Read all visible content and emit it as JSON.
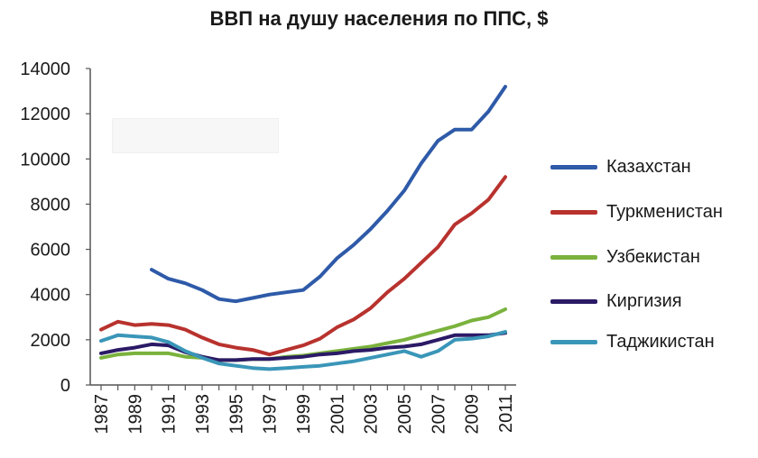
{
  "chart_data": {
    "type": "line",
    "title": "ВВП на душу населения по ППС, $",
    "xlabel": "",
    "ylabel": "",
    "ylim": [
      0,
      14000
    ],
    "xlim": [
      1987,
      2011
    ],
    "y_ticks": [
      0,
      2000,
      4000,
      6000,
      8000,
      10000,
      12000,
      14000
    ],
    "y_tick_labels": [
      "0",
      "2000",
      "4000",
      "6000",
      "8000",
      "10000",
      "12000",
      "14000"
    ],
    "x_ticks": [
      1987,
      1989,
      1991,
      1993,
      1995,
      1997,
      1999,
      2001,
      2003,
      2005,
      2007,
      2009,
      2011
    ],
    "x_tick_labels": [
      "1987",
      "1989",
      "1991",
      "1993",
      "1995",
      "1997",
      "1999",
      "2001",
      "2003",
      "2005",
      "2007",
      "2009",
      "2011"
    ],
    "grid": false,
    "legend_position": "right",
    "series": [
      {
        "name": "Казахстан",
        "color": "#2e5aa8",
        "x": [
          1990,
          1991,
          1992,
          1993,
          1994,
          1995,
          1996,
          1997,
          1998,
          1999,
          2000,
          2001,
          2002,
          2003,
          2004,
          2005,
          2006,
          2007,
          2008,
          2009,
          2010,
          2011
        ],
        "values": [
          5100,
          4700,
          4500,
          4200,
          3800,
          3700,
          3850,
          4000,
          4100,
          4200,
          4800,
          5600,
          6200,
          6900,
          7700,
          8600,
          9800,
          10800,
          11300,
          11300,
          12100,
          13200
        ]
      },
      {
        "name": "Туркменистан",
        "color": "#b8322e",
        "x": [
          1987,
          1988,
          1989,
          1990,
          1991,
          1992,
          1993,
          1994,
          1995,
          1996,
          1997,
          1998,
          1999,
          2000,
          2001,
          2002,
          2003,
          2004,
          2005,
          2006,
          2007,
          2008,
          2009,
          2010,
          2011
        ],
        "values": [
          2450,
          2800,
          2650,
          2700,
          2650,
          2450,
          2100,
          1800,
          1650,
          1550,
          1350,
          1550,
          1750,
          2050,
          2550,
          2900,
          3400,
          4100,
          4700,
          5400,
          6100,
          7100,
          7600,
          8200,
          9200
        ]
      },
      {
        "name": "Узбекистан",
        "color": "#7ab23d",
        "x": [
          1987,
          1988,
          1989,
          1990,
          1991,
          1992,
          1993,
          1994,
          1995,
          1996,
          1997,
          1998,
          1999,
          2000,
          2001,
          2002,
          2003,
          2004,
          2005,
          2006,
          2007,
          2008,
          2009,
          2010,
          2011
        ],
        "values": [
          1200,
          1350,
          1400,
          1400,
          1400,
          1250,
          1200,
          1100,
          1100,
          1150,
          1150,
          1250,
          1300,
          1400,
          1500,
          1600,
          1700,
          1850,
          2000,
          2200,
          2400,
          2600,
          2850,
          3000,
          3350
        ]
      },
      {
        "name": "Киргизия",
        "color": "#2b1a66",
        "x": [
          1987,
          1988,
          1989,
          1990,
          1991,
          1992,
          1993,
          1994,
          1995,
          1996,
          1997,
          1998,
          1999,
          2000,
          2001,
          2002,
          2003,
          2004,
          2005,
          2006,
          2007,
          2008,
          2009,
          2010,
          2011
        ],
        "values": [
          1400,
          1550,
          1650,
          1800,
          1750,
          1450,
          1250,
          1100,
          1100,
          1150,
          1150,
          1200,
          1250,
          1350,
          1400,
          1500,
          1550,
          1650,
          1700,
          1800,
          2000,
          2200,
          2200,
          2200,
          2300
        ]
      },
      {
        "name": "Таджикистан",
        "color": "#3a96b8",
        "x": [
          1987,
          1988,
          1989,
          1990,
          1991,
          1992,
          1993,
          1994,
          1995,
          1996,
          1997,
          1998,
          1999,
          2000,
          2001,
          2002,
          2003,
          2004,
          2005,
          2006,
          2007,
          2008,
          2009,
          2010,
          2011
        ],
        "values": [
          1950,
          2200,
          2150,
          2100,
          1900,
          1500,
          1200,
          950,
          850,
          750,
          700,
          750,
          800,
          850,
          950,
          1050,
          1200,
          1350,
          1500,
          1250,
          1500,
          2000,
          2050,
          2150,
          2350
        ]
      }
    ]
  }
}
